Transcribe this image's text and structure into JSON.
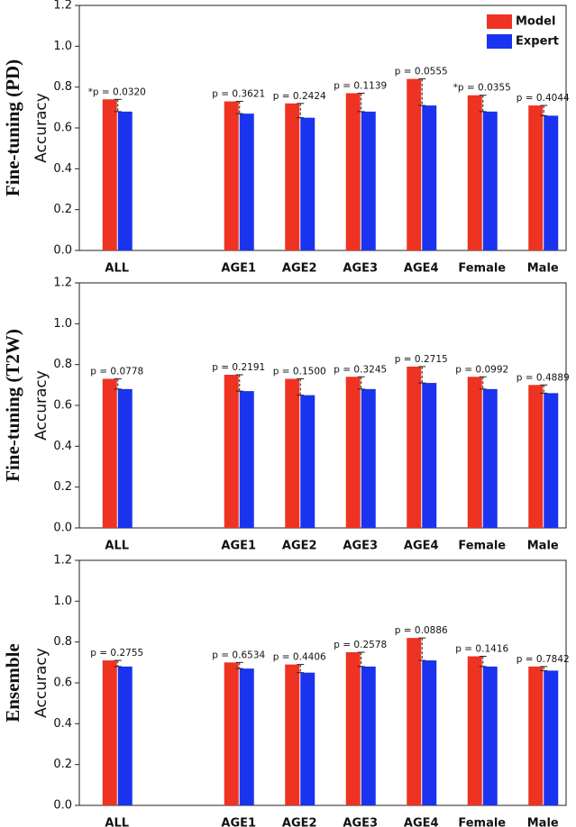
{
  "chart_data": [
    {
      "type": "bar",
      "title": "Fine-tuning (PD)",
      "y_label": "Accuracy",
      "categories": [
        "ALL",
        null,
        "AGE1",
        "AGE2",
        "AGE3",
        "AGE4",
        "Female",
        "Male"
      ],
      "series": [
        {
          "name": "Model",
          "color": "#ee3322",
          "values": [
            0.74,
            null,
            0.73,
            0.72,
            0.77,
            0.84,
            0.76,
            0.71
          ]
        },
        {
          "name": "Expert",
          "color": "#1a33ee",
          "values": [
            0.68,
            null,
            0.67,
            0.65,
            0.68,
            0.71,
            0.68,
            0.66
          ]
        }
      ],
      "annotations": [
        "*p = 0.0320",
        null,
        "p = 0.3621",
        "p = 0.2424",
        "p = 0.1139",
        "p = 0.0555",
        "*p = 0.0355",
        "p = 0.4044"
      ],
      "ylim": [
        0,
        1.2
      ],
      "yticks": [
        {
          "value": 0,
          "label": "0.0"
        },
        0.2,
        0.4,
        0.6,
        0.8,
        {
          "value": 1,
          "label": "1.0"
        },
        1.2
      ],
      "legend": "upper right"
    },
    {
      "type": "bar",
      "title": "Fine-tuning (T2W)",
      "y_label": "Accuracy",
      "categories": [
        "ALL",
        null,
        "AGE1",
        "AGE2",
        "AGE3",
        "AGE4",
        "Female",
        "Male"
      ],
      "series": [
        {
          "name": "Model",
          "color": "#ee3322",
          "values": [
            0.73,
            null,
            0.75,
            0.73,
            0.74,
            0.79,
            0.74,
            0.7
          ]
        },
        {
          "name": "Expert",
          "color": "#1a33ee",
          "values": [
            0.68,
            null,
            0.67,
            0.65,
            0.68,
            0.71,
            0.68,
            0.66
          ]
        }
      ],
      "annotations": [
        "p = 0.0778",
        null,
        "p = 0.2191",
        "p = 0.1500",
        "p = 0.3245",
        "p = 0.2715",
        "p = 0.0992",
        "p = 0.4889"
      ],
      "ylim": [
        0,
        1.2
      ],
      "yticks": [
        {
          "value": 0,
          "label": "0.0"
        },
        0.2,
        0.4,
        0.6,
        0.8,
        {
          "value": 1,
          "label": "1.0"
        },
        1.2
      ]
    },
    {
      "type": "bar",
      "title": "Ensemble",
      "y_label": "Accuracy",
      "categories": [
        "ALL",
        null,
        "AGE1",
        "AGE2",
        "AGE3",
        "AGE4",
        "Female",
        "Male"
      ],
      "series": [
        {
          "name": "Model",
          "color": "#ee3322",
          "values": [
            0.71,
            null,
            0.7,
            0.69,
            0.75,
            0.82,
            0.73,
            0.68
          ]
        },
        {
          "name": "Expert",
          "color": "#1a33ee",
          "values": [
            0.68,
            null,
            0.67,
            0.65,
            0.68,
            0.71,
            0.68,
            0.66
          ]
        }
      ],
      "annotations": [
        "p = 0.2755",
        null,
        "p = 0.6534",
        "p = 0.4406",
        "p = 0.2578",
        "p = 0.0886",
        "p = 0.1416",
        "p = 0.7842"
      ],
      "ylim": [
        0,
        1.2
      ],
      "yticks": [
        {
          "value": 0,
          "label": "0.0"
        },
        0.2,
        0.4,
        0.6,
        0.8,
        {
          "value": 1,
          "label": "1.0"
        },
        1.2
      ]
    }
  ]
}
